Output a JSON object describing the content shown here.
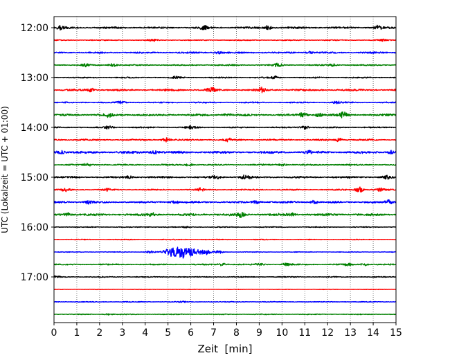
{
  "chart_data": {
    "type": "line",
    "title": "",
    "xlabel": "Zeit  [min]",
    "ylabel": "UTC (Lokalzeit = UTC + 01:00)",
    "xlim": [
      0,
      15
    ],
    "x_ticks": [
      "0",
      "1",
      "2",
      "3",
      "4",
      "5",
      "6",
      "7",
      "8",
      "9",
      "10",
      "11",
      "12",
      "13",
      "14",
      "15"
    ],
    "y_ticks": [
      "12:00",
      "13:00",
      "14:00",
      "15:00",
      "16:00",
      "17:00"
    ],
    "grid": "vertical dotted",
    "trace_interval_minutes": 15,
    "colors": [
      "#000000",
      "#ff0000",
      "#0000ff",
      "#008000"
    ],
    "traces": [
      {
        "start": "12:00",
        "color": "#000000",
        "noise": 1.0,
        "events": [
          {
            "t": 0.3,
            "amp": 5
          },
          {
            "t": 6.6,
            "amp": 5
          },
          {
            "t": 9.4,
            "amp": 5
          },
          {
            "t": 14.2,
            "amp": 5
          }
        ]
      },
      {
        "start": "12:15",
        "color": "#ff0000",
        "noise": 0.8,
        "events": [
          {
            "t": 4.3,
            "amp": 3
          },
          {
            "t": 14.4,
            "amp": 3
          }
        ]
      },
      {
        "start": "12:30",
        "color": "#0000ff",
        "noise": 1.0,
        "events": [
          {
            "t": 7.2,
            "amp": 3
          },
          {
            "t": 11.2,
            "amp": 3
          }
        ]
      },
      {
        "start": "12:45",
        "color": "#008000",
        "noise": 1.2,
        "events": [
          {
            "t": 1.4,
            "amp": 5
          },
          {
            "t": 2.6,
            "amp": 5
          },
          {
            "t": 9.8,
            "amp": 4
          },
          {
            "t": 12.2,
            "amp": 3
          }
        ]
      },
      {
        "start": "13:00",
        "color": "#000000",
        "noise": 0.9,
        "events": [
          {
            "t": 5.4,
            "amp": 3
          },
          {
            "t": 9.7,
            "amp": 3
          }
        ]
      },
      {
        "start": "13:15",
        "color": "#ff0000",
        "noise": 1.1,
        "events": [
          {
            "t": 1.6,
            "amp": 4
          },
          {
            "t": 6.9,
            "amp": 8
          },
          {
            "t": 9.1,
            "amp": 6
          }
        ]
      },
      {
        "start": "13:30",
        "color": "#0000ff",
        "noise": 1.1,
        "events": [
          {
            "t": 2.9,
            "amp": 3
          },
          {
            "t": 12.4,
            "amp": 3
          }
        ]
      },
      {
        "start": "13:45",
        "color": "#008000",
        "noise": 1.3,
        "events": [
          {
            "t": 2.4,
            "amp": 4
          },
          {
            "t": 7.6,
            "amp": 3
          },
          {
            "t": 10.9,
            "amp": 5
          },
          {
            "t": 11.6,
            "amp": 5
          },
          {
            "t": 12.7,
            "amp": 8
          }
        ]
      },
      {
        "start": "14:00",
        "color": "#000000",
        "noise": 1.2,
        "events": [
          {
            "t": 2.4,
            "amp": 4
          },
          {
            "t": 6.0,
            "amp": 4
          },
          {
            "t": 11.0,
            "amp": 5
          }
        ]
      },
      {
        "start": "14:15",
        "color": "#ff0000",
        "noise": 1.2,
        "events": [
          {
            "t": 4.9,
            "amp": 5
          },
          {
            "t": 7.6,
            "amp": 4
          },
          {
            "t": 12.5,
            "amp": 4
          }
        ]
      },
      {
        "start": "14:30",
        "color": "#0000ff",
        "noise": 1.3,
        "events": [
          {
            "t": 0.3,
            "amp": 5
          },
          {
            "t": 4.4,
            "amp": 4
          },
          {
            "t": 11.2,
            "amp": 4
          },
          {
            "t": 14.8,
            "amp": 4
          }
        ]
      },
      {
        "start": "14:45",
        "color": "#008000",
        "noise": 1.2,
        "events": [
          {
            "t": 1.5,
            "amp": 3
          },
          {
            "t": 5.9,
            "amp": 4
          },
          {
            "t": 10.0,
            "amp": 3
          }
        ]
      },
      {
        "start": "15:00",
        "color": "#000000",
        "noise": 1.2,
        "events": [
          {
            "t": 3.3,
            "amp": 4
          },
          {
            "t": 7.1,
            "amp": 4
          },
          {
            "t": 8.4,
            "amp": 7
          },
          {
            "t": 14.6,
            "amp": 4
          }
        ]
      },
      {
        "start": "15:15",
        "color": "#ff0000",
        "noise": 1.3,
        "events": [
          {
            "t": 0.5,
            "amp": 5
          },
          {
            "t": 2.3,
            "amp": 4
          },
          {
            "t": 6.4,
            "amp": 4
          },
          {
            "t": 13.4,
            "amp": 8
          },
          {
            "t": 14.3,
            "amp": 5
          }
        ]
      },
      {
        "start": "15:30",
        "color": "#0000ff",
        "noise": 1.4,
        "events": [
          {
            "t": 1.5,
            "amp": 4
          },
          {
            "t": 5.3,
            "amp": 4
          },
          {
            "t": 8.9,
            "amp": 4
          },
          {
            "t": 11.4,
            "amp": 4
          },
          {
            "t": 14.7,
            "amp": 5
          }
        ]
      },
      {
        "start": "15:45",
        "color": "#008000",
        "noise": 1.3,
        "events": [
          {
            "t": 0.6,
            "amp": 4
          },
          {
            "t": 4.3,
            "amp": 4
          },
          {
            "t": 8.2,
            "amp": 6
          },
          {
            "t": 10.4,
            "amp": 4
          }
        ]
      },
      {
        "start": "16:00",
        "color": "#000000",
        "noise": 0.8,
        "events": [
          {
            "t": 5.8,
            "amp": 2
          }
        ]
      },
      {
        "start": "16:15",
        "color": "#ff0000",
        "noise": 0.6,
        "events": []
      },
      {
        "start": "16:30",
        "color": "#0000ff",
        "noise": 0.7,
        "events": [
          {
            "t": 4.2,
            "amp": 4
          },
          {
            "t": 5.2,
            "amp": 12
          },
          {
            "t": 5.6,
            "amp": 11
          },
          {
            "t": 6.1,
            "amp": 9
          },
          {
            "t": 6.7,
            "amp": 6
          },
          {
            "t": 7.2,
            "amp": 4
          }
        ]
      },
      {
        "start": "16:45",
        "color": "#008000",
        "noise": 1.0,
        "events": [
          {
            "t": 7.4,
            "amp": 4
          },
          {
            "t": 9.0,
            "amp": 3
          },
          {
            "t": 10.2,
            "amp": 3
          },
          {
            "t": 12.9,
            "amp": 4
          },
          {
            "t": 13.6,
            "amp": 3
          }
        ]
      },
      {
        "start": "17:00",
        "color": "#000000",
        "noise": 0.6,
        "events": [
          {
            "t": 0.05,
            "amp": 3
          }
        ]
      },
      {
        "start": "17:15",
        "color": "#ff0000",
        "noise": 0.5,
        "events": []
      },
      {
        "start": "17:30",
        "color": "#0000ff",
        "noise": 0.6,
        "events": [
          {
            "t": 5.6,
            "amp": 2
          }
        ]
      },
      {
        "start": "17:45",
        "color": "#008000",
        "noise": 0.5,
        "events": [
          {
            "t": 2.4,
            "amp": 2
          }
        ]
      }
    ]
  }
}
